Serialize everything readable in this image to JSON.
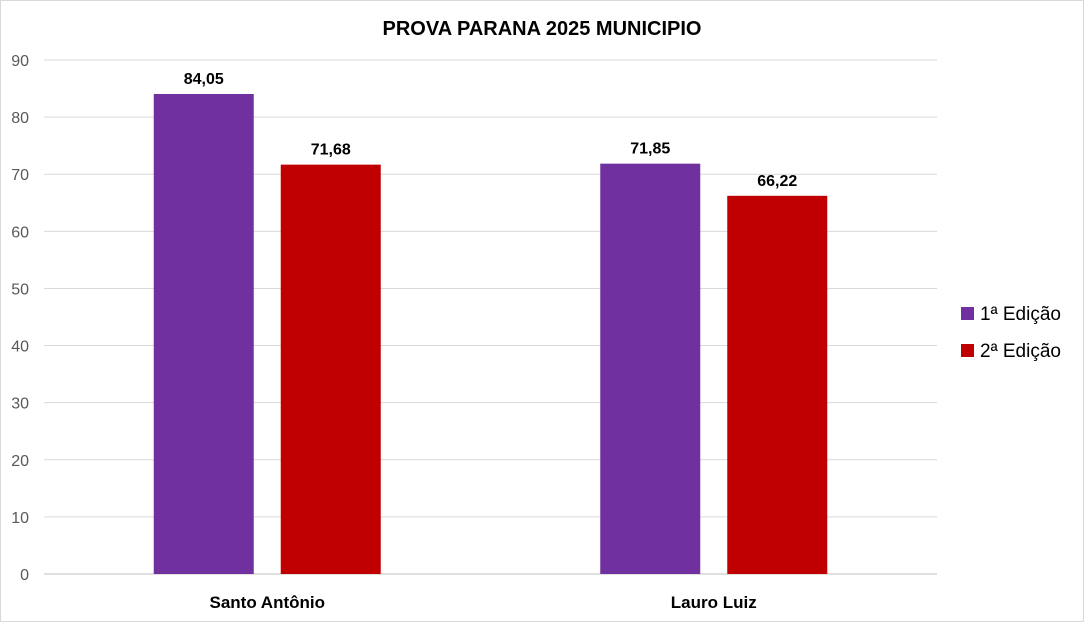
{
  "chart_data": {
    "type": "bar",
    "title": "PROVA PARANA 2025 MUNICIPIO",
    "categories": [
      "Santo Antônio",
      "Lauro Luiz"
    ],
    "series": [
      {
        "name": "1ª Edição",
        "color": "#7030A0",
        "values": [
          84.05,
          71.85
        ],
        "labels": [
          "84,05",
          "71,85"
        ]
      },
      {
        "name": "2ª Edição",
        "color": "#C00000",
        "values": [
          71.68,
          66.22
        ],
        "labels": [
          "71,68",
          "66,22"
        ]
      }
    ],
    "ylim": [
      0,
      90
    ],
    "yticks": [
      0,
      10,
      20,
      30,
      40,
      50,
      60,
      70,
      80,
      90
    ],
    "grid": true,
    "legend": "right"
  }
}
